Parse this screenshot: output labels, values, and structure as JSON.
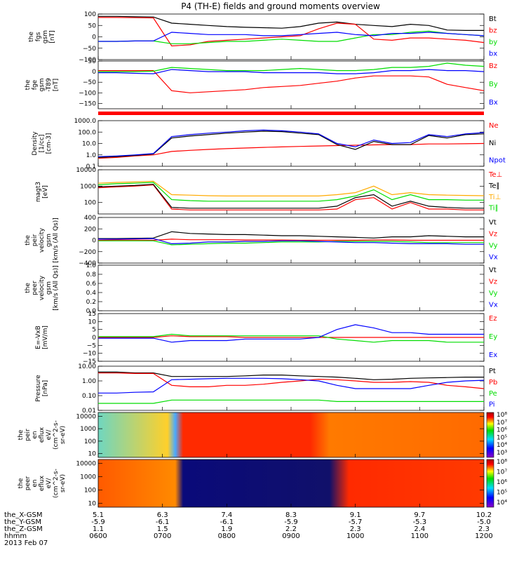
{
  "title": "P4 (TH-E) fields and ground moments overview",
  "date_label": "2013 Feb 07",
  "ephemeris": {
    "rows": [
      {
        "name": "the_X-GSM",
        "values": [
          "5.1",
          "6.3",
          "7.4",
          "8.3",
          "9.1",
          "9.7",
          "10.2"
        ]
      },
      {
        "name": "the_Y-GSM",
        "values": [
          "-5.9",
          "-6.1",
          "-6.1",
          "-5.9",
          "-5.7",
          "-5.3",
          "-5.0"
        ]
      },
      {
        "name": "the_Z-GSM",
        "values": [
          "1.1",
          "1.5",
          "1.9",
          "2.2",
          "2.3",
          "2.4",
          "2.3"
        ]
      },
      {
        "name": "hhmm",
        "values": [
          "0600",
          "0700",
          "0800",
          "0900",
          "1000",
          "1100",
          "1200"
        ]
      }
    ]
  },
  "colors": {
    "black": "#000000",
    "red": "#ff0000",
    "green": "#00dd00",
    "blue": "#0000ff"
  },
  "chart_data": [
    {
      "type": "line",
      "ylabel": [
        "the",
        "fgs",
        "gsm",
        "[nT]"
      ],
      "ylim": [
        -100,
        100
      ],
      "ticks": [
        {
          "v": 100,
          "label": "100"
        },
        {
          "v": 50,
          "label": "50"
        },
        {
          "v": 0,
          "label": "0"
        },
        {
          "v": -50,
          "label": "−50"
        },
        {
          "v": -100,
          "label": "−100"
        }
      ],
      "series": [
        {
          "name": "Bt",
          "color": "black",
          "values": [
            90,
            90,
            88,
            87,
            60,
            55,
            50,
            45,
            42,
            40,
            38,
            45,
            60,
            65,
            55,
            50,
            45,
            55,
            50,
            30,
            28,
            28
          ]
        },
        {
          "name": "bz",
          "color": "red",
          "values": [
            85,
            85,
            84,
            83,
            -40,
            -35,
            -20,
            -15,
            -10,
            -5,
            0,
            5,
            35,
            60,
            55,
            -10,
            -15,
            -5,
            -5,
            -10,
            -15,
            -25
          ]
        },
        {
          "name": "by",
          "color": "green",
          "values": [
            -20,
            -20,
            -18,
            -18,
            -30,
            -30,
            -25,
            -20,
            -20,
            -15,
            -10,
            -15,
            -20,
            -20,
            -5,
            10,
            10,
            20,
            25,
            15,
            10,
            5
          ]
        },
        {
          "name": "bx",
          "color": "blue",
          "values": [
            -20,
            -20,
            -18,
            -18,
            20,
            15,
            10,
            10,
            10,
            5,
            5,
            10,
            15,
            20,
            10,
            5,
            15,
            15,
            20,
            15,
            10,
            5
          ]
        }
      ]
    },
    {
      "type": "line",
      "ylabel": [
        "the",
        "fge",
        "gsm",
        "-T89",
        "[nT]"
      ],
      "ylim": [
        -175,
        50
      ],
      "ticks": [
        {
          "v": 50,
          "label": "50"
        },
        {
          "v": 0,
          "label": "0"
        },
        {
          "v": -50,
          "label": "−50"
        },
        {
          "v": -100,
          "label": "−100"
        },
        {
          "v": -150,
          "label": "−150"
        }
      ],
      "series": [
        {
          "name": "Bz",
          "color": "red",
          "values": [
            5,
            5,
            5,
            5,
            -90,
            -100,
            -95,
            -90,
            -85,
            -75,
            -70,
            -65,
            -55,
            -45,
            -30,
            -20,
            -20,
            -20,
            -25,
            -60,
            -75,
            -90
          ]
        },
        {
          "name": "By",
          "color": "green",
          "values": [
            0,
            0,
            0,
            2,
            20,
            15,
            10,
            5,
            5,
            5,
            10,
            15,
            10,
            5,
            5,
            10,
            20,
            20,
            25,
            40,
            30,
            25
          ]
        },
        {
          "name": "Bx",
          "color": "blue",
          "values": [
            -5,
            -5,
            -8,
            -10,
            10,
            5,
            0,
            0,
            0,
            -5,
            -5,
            -5,
            -5,
            -10,
            -10,
            -5,
            5,
            5,
            10,
            5,
            5,
            0
          ]
        }
      ]
    },
    {
      "type": "line",
      "ylabel": [
        "Density",
        "[1/cc]",
        "[cm-3]"
      ],
      "log": true,
      "ylim": [
        0.1,
        1000
      ],
      "ticks": [
        {
          "v": 1000,
          "label": "1000.0"
        },
        {
          "v": 100,
          "label": "100.0"
        },
        {
          "v": 10,
          "label": "10.0"
        },
        {
          "v": 1,
          "label": "1.0"
        },
        {
          "v": 0.1,
          "label": "0.1"
        }
      ],
      "series": [
        {
          "name": "Ne",
          "color": "red",
          "values": [
            0.5,
            0.6,
            0.8,
            1,
            2,
            2.5,
            3,
            3.5,
            4,
            4.5,
            5,
            5.5,
            6,
            6.5,
            7,
            7.5,
            8,
            8,
            9,
            9,
            9.5,
            10
          ]
        },
        {
          "name": "Ni",
          "color": "black",
          "values": [
            0.6,
            0.7,
            0.9,
            1.2,
            30,
            45,
            60,
            80,
            100,
            120,
            110,
            80,
            60,
            8,
            3,
            15,
            8,
            8,
            50,
            30,
            60,
            70
          ]
        },
        {
          "name": "Npot",
          "color": "blue",
          "values": [
            0.7,
            0.8,
            1,
            1.3,
            40,
            60,
            80,
            100,
            130,
            150,
            130,
            100,
            70,
            10,
            5,
            20,
            10,
            12,
            60,
            40,
            70,
            90
          ]
        }
      ]
    },
    {
      "type": "line",
      "ylabel": [
        "magt3",
        "[eV]"
      ],
      "log": true,
      "ylim": [
        20,
        10000
      ],
      "ticks": [
        {
          "v": 10000,
          "label": "10000"
        },
        {
          "v": 1000,
          "label": "1000"
        },
        {
          "v": 100,
          "label": "100"
        }
      ],
      "series": [
        {
          "name": "Te⊥",
          "color": "red",
          "values": [
            800,
            900,
            1000,
            1200,
            40,
            35,
            35,
            35,
            35,
            35,
            35,
            35,
            35,
            40,
            150,
            200,
            40,
            100,
            40,
            40,
            35,
            35
          ]
        },
        {
          "name": "Te∥",
          "color": "black",
          "values": [
            900,
            1000,
            1100,
            1300,
            50,
            45,
            45,
            45,
            45,
            45,
            45,
            45,
            45,
            60,
            200,
            300,
            60,
            120,
            60,
            50,
            45,
            45
          ]
        },
        {
          "name": "Ti⊥",
          "color": "#ffaa00",
          "values": [
            1500,
            1700,
            1800,
            2000,
            300,
            280,
            260,
            250,
            250,
            250,
            250,
            250,
            250,
            300,
            400,
            1000,
            300,
            400,
            300,
            280,
            270,
            260
          ]
        },
        {
          "name": "Ti∥",
          "color": "green",
          "values": [
            1200,
            1400,
            1500,
            1700,
            150,
            130,
            120,
            120,
            120,
            120,
            120,
            120,
            120,
            150,
            250,
            600,
            150,
            300,
            150,
            150,
            140,
            140
          ]
        }
      ]
    },
    {
      "type": "line",
      "ylabel": [
        "the",
        "peir",
        "velocity",
        "gsm",
        "[km/s (All Qs)]"
      ],
      "ylim": [
        -400,
        400
      ],
      "ticks": [
        {
          "v": 400,
          "label": "400"
        },
        {
          "v": 200,
          "label": "200"
        },
        {
          "v": 0,
          "label": "0"
        },
        {
          "v": -200,
          "label": "−200"
        },
        {
          "v": -400,
          "label": "−400"
        }
      ],
      "series": [
        {
          "name": "Vt",
          "color": "black",
          "values": [
            30,
            30,
            35,
            40,
            150,
            120,
            110,
            100,
            100,
            90,
            80,
            80,
            70,
            60,
            50,
            40,
            60,
            60,
            80,
            70,
            60,
            60
          ]
        },
        {
          "name": "Vz",
          "color": "red",
          "values": [
            0,
            5,
            5,
            0,
            20,
            10,
            10,
            10,
            5,
            5,
            5,
            0,
            0,
            0,
            0,
            5,
            5,
            0,
            0,
            0,
            0,
            0
          ]
        },
        {
          "name": "Vy",
          "color": "green",
          "values": [
            -10,
            -10,
            -10,
            -10,
            -80,
            -70,
            -60,
            -50,
            -50,
            -40,
            -30,
            -30,
            -30,
            -20,
            -20,
            -20,
            -20,
            -30,
            -40,
            -40,
            -40,
            -40
          ]
        },
        {
          "name": "Vx",
          "color": "blue",
          "values": [
            20,
            20,
            25,
            30,
            -60,
            -50,
            -30,
            -30,
            -20,
            -20,
            -10,
            -10,
            -20,
            -30,
            -40,
            -40,
            -50,
            -60,
            -60,
            -60,
            -70,
            -70
          ]
        }
      ]
    },
    {
      "type": "line",
      "ylabel": [
        "the",
        "peer",
        "velocity",
        "gsm",
        "[km/s (All Qs)]"
      ],
      "ylim": [
        0,
        1
      ],
      "ticks": [
        {
          "v": 1,
          "label": "1.0"
        },
        {
          "v": 0.8,
          "label": "0.8"
        },
        {
          "v": 0.6,
          "label": "0.6"
        },
        {
          "v": 0.4,
          "label": "0.4"
        },
        {
          "v": 0.2,
          "label": "0.2"
        },
        {
          "v": 0,
          "label": "0.0"
        }
      ],
      "series": [
        {
          "name": "Vt",
          "color": "black",
          "values": []
        },
        {
          "name": "Vz",
          "color": "red",
          "values": []
        },
        {
          "name": "Vy",
          "color": "green",
          "values": []
        },
        {
          "name": "Vx",
          "color": "blue",
          "values": []
        }
      ]
    },
    {
      "type": "line",
      "ylabel": [
        "E=-VxB",
        "[mV/m]"
      ],
      "ylim": [
        -15,
        15
      ],
      "ticks": [
        {
          "v": 15,
          "label": "15"
        },
        {
          "v": 10,
          "label": "10"
        },
        {
          "v": 5,
          "label": "5"
        },
        {
          "v": 0,
          "label": "0"
        },
        {
          "v": -5,
          "label": "−5"
        },
        {
          "v": -10,
          "label": "−10"
        },
        {
          "v": -15,
          "label": "−15"
        }
      ],
      "series": [
        {
          "name": "Ez",
          "color": "red",
          "values": [
            0,
            0,
            0,
            0,
            1,
            0.5,
            0.5,
            0.5,
            0,
            0,
            0,
            0,
            0,
            0,
            0,
            0,
            0,
            0,
            0,
            0,
            0,
            0
          ]
        },
        {
          "name": "Ey",
          "color": "green",
          "values": [
            0.5,
            0.5,
            0.5,
            0.5,
            2,
            1,
            1,
            1,
            1,
            1,
            1,
            1,
            1,
            -1,
            -2,
            -3,
            -2,
            -2,
            -2,
            -3,
            -3,
            -3
          ]
        },
        {
          "name": "Ex",
          "color": "blue",
          "values": [
            -0.5,
            -0.5,
            -0.5,
            -0.5,
            -3,
            -2,
            -2,
            -2,
            -1,
            -1,
            -1,
            -1,
            0,
            5,
            8,
            6,
            3,
            3,
            2,
            2,
            2,
            2
          ]
        }
      ]
    },
    {
      "type": "line",
      "ylabel": [
        "Pressure",
        "[nPa]"
      ],
      "log": true,
      "ylim": [
        0.01,
        10
      ],
      "ticks": [
        {
          "v": 10,
          "label": "10.00"
        },
        {
          "v": 1,
          "label": "1.00"
        },
        {
          "v": 0.1,
          "label": "0.10"
        },
        {
          "v": 0.01,
          "label": "0.01"
        }
      ],
      "series": [
        {
          "name": "Pt",
          "color": "black",
          "values": [
            4,
            4,
            3.5,
            3.5,
            2,
            2,
            2,
            2,
            2.2,
            2.5,
            2.5,
            2.2,
            2,
            1.8,
            1.5,
            1.2,
            1.3,
            1.5,
            1.6,
            1.7,
            1.8,
            1.8
          ]
        },
        {
          "name": "Pb",
          "color": "red",
          "values": [
            3.5,
            3.5,
            3.2,
            3.2,
            0.5,
            0.4,
            0.4,
            0.5,
            0.5,
            0.6,
            0.8,
            1,
            1.3,
            1.2,
            1,
            0.8,
            0.8,
            0.9,
            0.8,
            0.5,
            0.4,
            0.3
          ]
        },
        {
          "name": "Pe",
          "color": "green",
          "values": [
            0.03,
            0.03,
            0.03,
            0.03,
            0.05,
            0.05,
            0.05,
            0.05,
            0.05,
            0.05,
            0.05,
            0.05,
            0.05,
            0.04,
            0.04,
            0.04,
            0.04,
            0.04,
            0.04,
            0.04,
            0.04,
            0.04
          ]
        },
        {
          "name": "Pi",
          "color": "blue",
          "values": [
            0.15,
            0.15,
            0.17,
            0.18,
            1.2,
            1.3,
            1.4,
            1.5,
            1.5,
            1.5,
            1.4,
            1.2,
            1,
            0.5,
            0.3,
            0.3,
            0.3,
            0.3,
            0.5,
            0.8,
            1,
            1.1
          ]
        }
      ]
    },
    {
      "type": "heatmap",
      "ylabel": [
        "the",
        "peir",
        "en",
        "eflux",
        "eV/",
        "(cm^2-s-",
        "sr-eV)"
      ],
      "log": true,
      "ylim": [
        5,
        20000
      ],
      "ticks": [
        {
          "v": 10000,
          "label": "10000"
        },
        {
          "v": 1000,
          "label": "1000"
        },
        {
          "v": 100,
          "label": "100"
        },
        {
          "v": 10,
          "label": "10"
        }
      ],
      "colorbar": {
        "labels": [
          "10⁸",
          "10⁷",
          "10⁶",
          "10⁵",
          "10⁴",
          "10³"
        ]
      }
    },
    {
      "type": "heatmap",
      "ylabel": [
        "the",
        "peer",
        "en",
        "eflux",
        "eV/",
        "(cm^2-s-",
        "sr-eV)"
      ],
      "log": true,
      "ylim": [
        5,
        20000
      ],
      "ticks": [
        {
          "v": 10000,
          "label": "10000"
        },
        {
          "v": 1000,
          "label": "1000"
        },
        {
          "v": 100,
          "label": "100"
        },
        {
          "v": 10,
          "label": "10"
        }
      ],
      "colorbar": {
        "labels": [
          "10⁸",
          "10⁷",
          "10⁶",
          "10⁵",
          "10⁴"
        ]
      }
    }
  ]
}
